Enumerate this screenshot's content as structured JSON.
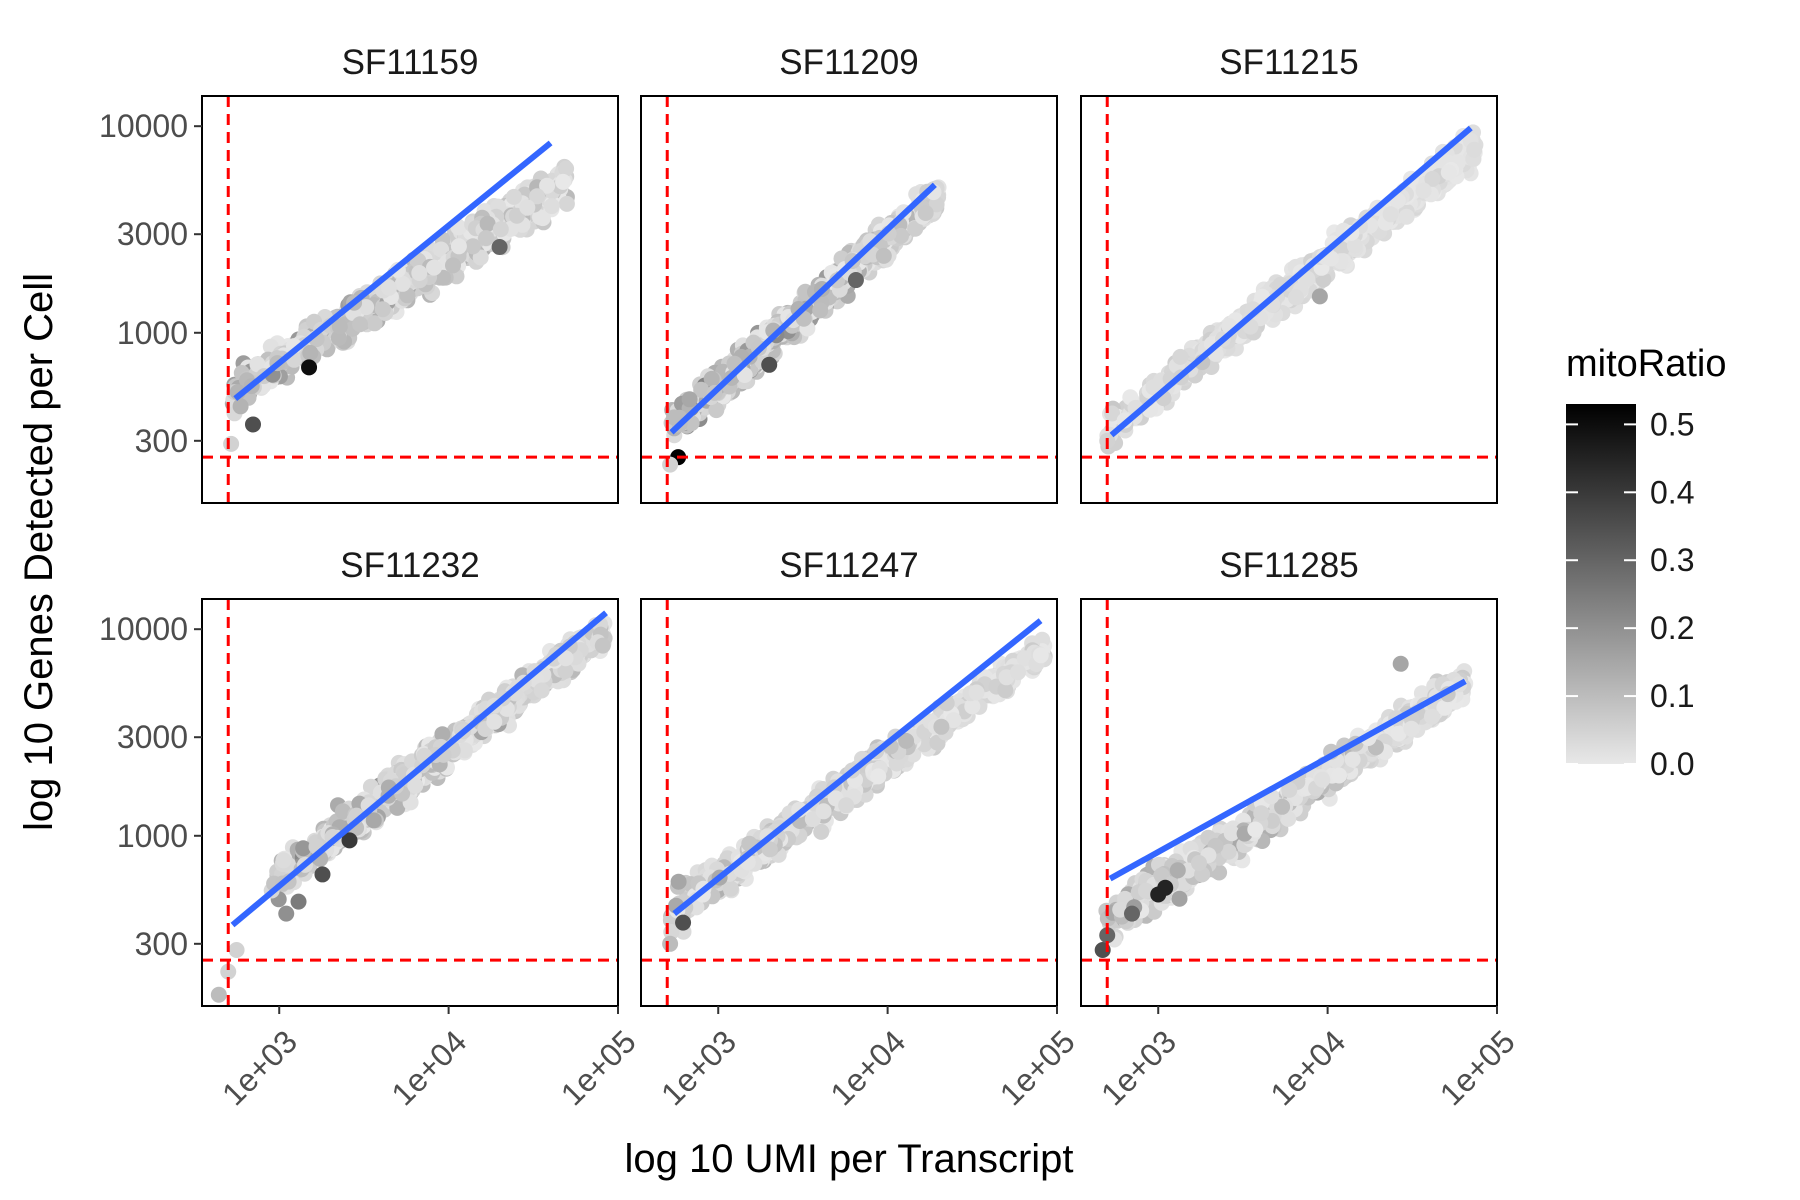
{
  "chart_data": {
    "type": "scatter",
    "xlabel": "log 10 UMI per Transcript",
    "ylabel": "log 10 Genes Detected per Cell",
    "x_scale": "log10",
    "y_scale": "log10",
    "xlim": [
      350,
      100000
    ],
    "ylim": [
      150,
      14000
    ],
    "x_ticks": [
      1000,
      10000,
      100000
    ],
    "x_tick_labels": [
      "1e+03",
      "1e+04",
      "1e+05"
    ],
    "y_ticks": [
      300,
      1000,
      3000,
      10000
    ],
    "y_tick_labels": [
      "300",
      "1000",
      "3000",
      "10000"
    ],
    "thresholds": {
      "umi": 500,
      "genes": 250,
      "color": "#ff0000"
    },
    "fit_color": "#3366ff",
    "legend": {
      "title": "mitoRatio",
      "position": "right",
      "ticks": [
        0.5,
        0.4,
        0.3,
        0.2,
        0.1,
        0.0
      ],
      "tick_labels": [
        "0.5",
        "0.4",
        "0.3",
        "0.2",
        "0.1",
        "0.0"
      ],
      "range": [
        0.0,
        0.53
      ],
      "low_color": "#e8e8e8",
      "high_color": "#000000"
    },
    "grid": false,
    "facets": [
      {
        "name": "SF11159",
        "fit": {
          "x": [
            550,
            40000
          ],
          "y": [
            480,
            8300
          ]
        },
        "cloud": {
          "x": [
            520,
            50000
          ],
          "y_start": [
            420,
            600
          ],
          "y_end": [
            4500,
            6500
          ],
          "max_ratio": 0.3
        },
        "points": [
          {
            "x": 520,
            "y": 290,
            "ratio": 0.05
          },
          {
            "x": 700,
            "y": 360,
            "ratio": 0.35
          },
          {
            "x": 1500,
            "y": 680,
            "ratio": 0.5
          },
          {
            "x": 3000,
            "y": 1100,
            "ratio": 0.08
          },
          {
            "x": 20000,
            "y": 2600,
            "ratio": 0.3
          }
        ]
      },
      {
        "name": "SF11209",
        "fit": {
          "x": [
            530,
            19000
          ],
          "y": [
            330,
            5200
          ]
        },
        "cloud": {
          "x": [
            530,
            20000
          ],
          "y_start": [
            300,
            400
          ],
          "y_end": [
            4200,
            5200
          ],
          "max_ratio": 0.35
        },
        "points": [
          {
            "x": 580,
            "y": 250,
            "ratio": 0.53
          },
          {
            "x": 520,
            "y": 230,
            "ratio": 0.05
          },
          {
            "x": 2000,
            "y": 700,
            "ratio": 0.35
          },
          {
            "x": 6500,
            "y": 1800,
            "ratio": 0.3
          }
        ]
      },
      {
        "name": "SF11215",
        "fit": {
          "x": [
            530,
            70000
          ],
          "y": [
            320,
            9800
          ]
        },
        "cloud": {
          "x": [
            500,
            75000
          ],
          "y_start": [
            300,
            380
          ],
          "y_end": [
            7000,
            9000
          ],
          "max_ratio": 0.12
        },
        "points": [
          {
            "x": 500,
            "y": 300,
            "ratio": 0.05
          },
          {
            "x": 9000,
            "y": 1500,
            "ratio": 0.15
          }
        ]
      },
      {
        "name": "SF11232",
        "fit": {
          "x": [
            530,
            85000
          ],
          "y": [
            370,
            12000
          ]
        },
        "cloud": {
          "x": [
            900,
            85000
          ],
          "y_start": [
            500,
            700
          ],
          "y_end": [
            9000,
            11000
          ],
          "max_ratio": 0.3
        },
        "points": [
          {
            "x": 440,
            "y": 170,
            "ratio": 0.1
          },
          {
            "x": 500,
            "y": 220,
            "ratio": 0.05
          },
          {
            "x": 560,
            "y": 280,
            "ratio": 0.05
          },
          {
            "x": 1100,
            "y": 420,
            "ratio": 0.2
          },
          {
            "x": 1300,
            "y": 480,
            "ratio": 0.25
          },
          {
            "x": 1800,
            "y": 650,
            "ratio": 0.35
          },
          {
            "x": 2600,
            "y": 950,
            "ratio": 0.4
          }
        ]
      },
      {
        "name": "SF11247",
        "fit": {
          "x": [
            550,
            80000
          ],
          "y": [
            420,
            11000
          ]
        },
        "cloud": {
          "x": [
            520,
            85000
          ],
          "y_start": [
            350,
            500
          ],
          "y_end": [
            7500,
            8500
          ],
          "max_ratio": 0.2
        },
        "points": [
          {
            "x": 520,
            "y": 300,
            "ratio": 0.1
          },
          {
            "x": 620,
            "y": 380,
            "ratio": 0.35
          }
        ]
      },
      {
        "name": "SF11285",
        "fit": {
          "x": [
            520,
            65000
          ],
          "y": [
            620,
            5600
          ]
        },
        "cloud": {
          "x": [
            480,
            65000
          ],
          "y_start": [
            300,
            450
          ],
          "y_end": [
            5000,
            6000
          ],
          "max_ratio": 0.25
        },
        "points": [
          {
            "x": 470,
            "y": 280,
            "ratio": 0.35
          },
          {
            "x": 500,
            "y": 330,
            "ratio": 0.3
          },
          {
            "x": 1000,
            "y": 520,
            "ratio": 0.45
          },
          {
            "x": 1100,
            "y": 560,
            "ratio": 0.45
          },
          {
            "x": 700,
            "y": 420,
            "ratio": 0.3
          },
          {
            "x": 27000,
            "y": 6800,
            "ratio": 0.15
          }
        ]
      }
    ]
  }
}
